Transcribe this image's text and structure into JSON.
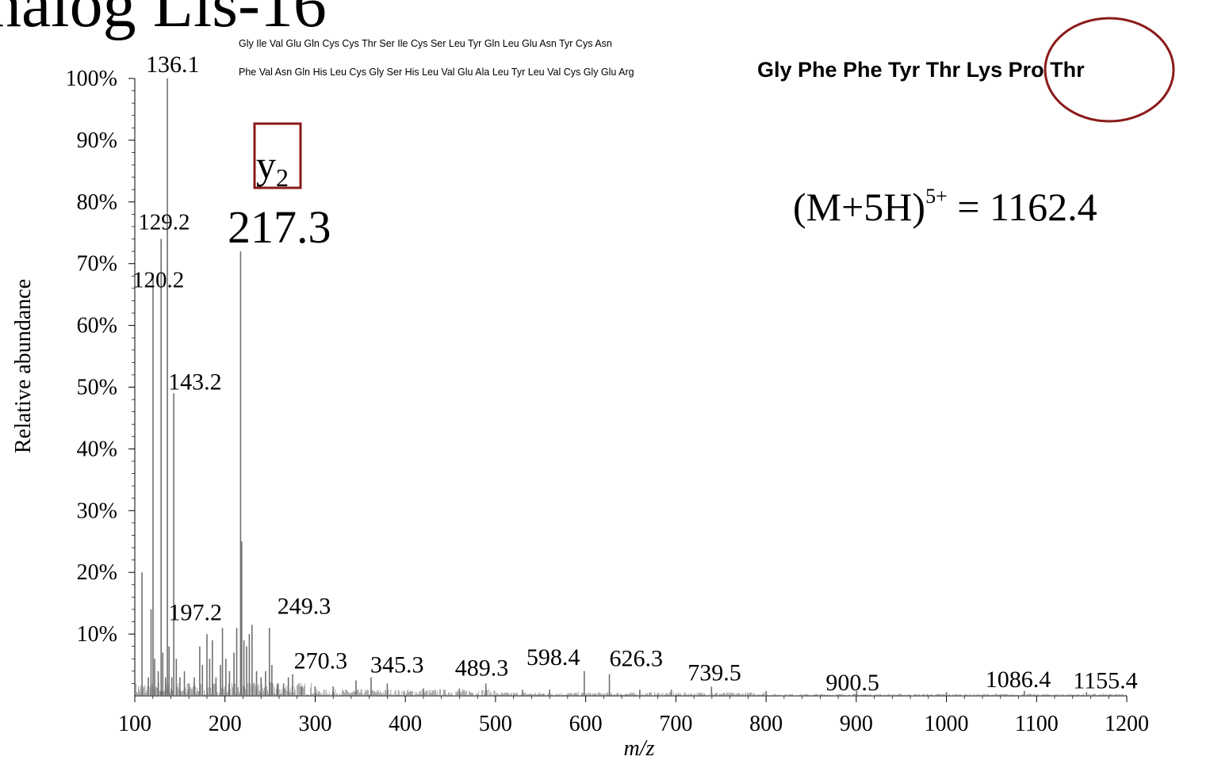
{
  "page": {
    "title_fragment": "nalog Lis-16"
  },
  "annotations": {
    "ion_label": "y",
    "ion_subscript": "2",
    "ion_value": "217.3",
    "precursor_prefix": "(M+5H)",
    "precursor_charge": "5+",
    "precursor_suffix": " = 1162.4",
    "sequence_line1": "Gly Ile Val Glu Gln Cys Cys Thr Ser Ile Cys Ser Leu Tyr Gln Leu Glu Asn Tyr Cys Asn",
    "sequence_line2_small": "Phe Val Asn Gln His Leu Cys Gly Ser His Leu Val Glu Ala Leu Tyr Leu Val Cys Gly Glu Arg",
    "sequence_line2_bold": "Gly Phe Phe Tyr Thr Lys Pro Thr",
    "box_color": "#8b1a1a",
    "circle_color": "#8b1a1a"
  },
  "chart_data": {
    "type": "bar",
    "xlabel": "m/z",
    "ylabel": "Relative abundance",
    "xlim": [
      100,
      1200
    ],
    "ylim": [
      0,
      100
    ],
    "xticks": [
      100,
      200,
      300,
      400,
      500,
      600,
      700,
      800,
      900,
      1000,
      1100,
      1200
    ],
    "yticks": [
      10,
      20,
      30,
      40,
      50,
      60,
      70,
      80,
      90,
      100
    ],
    "ytick_labels": [
      "10%",
      "20%",
      "30%",
      "40%",
      "50%",
      "60%",
      "70%",
      "80%",
      "90%",
      "100%"
    ],
    "line_color": "#707070",
    "peaks": [
      {
        "mz": 108.0,
        "intensity": 20.0
      },
      {
        "mz": 115.0,
        "intensity": 3.0
      },
      {
        "mz": 118.0,
        "intensity": 14.0
      },
      {
        "mz": 120.2,
        "intensity": 68.0,
        "label": "120.2"
      },
      {
        "mz": 122.0,
        "intensity": 6.0
      },
      {
        "mz": 126.0,
        "intensity": 4.0
      },
      {
        "mz": 129.2,
        "intensity": 74.0,
        "label": "129.2"
      },
      {
        "mz": 131.0,
        "intensity": 7.0
      },
      {
        "mz": 134.0,
        "intensity": 3.0
      },
      {
        "mz": 136.1,
        "intensity": 100.0,
        "label": "136.1"
      },
      {
        "mz": 138.0,
        "intensity": 8.0
      },
      {
        "mz": 141.0,
        "intensity": 3.0
      },
      {
        "mz": 143.2,
        "intensity": 49.0,
        "label": "143.2"
      },
      {
        "mz": 146.0,
        "intensity": 6.0
      },
      {
        "mz": 150.0,
        "intensity": 3.0
      },
      {
        "mz": 155.0,
        "intensity": 4.0
      },
      {
        "mz": 160.0,
        "intensity": 2.0
      },
      {
        "mz": 166.0,
        "intensity": 3.0
      },
      {
        "mz": 172.0,
        "intensity": 8.0
      },
      {
        "mz": 175.0,
        "intensity": 5.0
      },
      {
        "mz": 180.0,
        "intensity": 10.0
      },
      {
        "mz": 183.0,
        "intensity": 6.0
      },
      {
        "mz": 186.0,
        "intensity": 9.0
      },
      {
        "mz": 190.0,
        "intensity": 3.0
      },
      {
        "mz": 195.0,
        "intensity": 5.0
      },
      {
        "mz": 197.2,
        "intensity": 11.0,
        "label": "197.2"
      },
      {
        "mz": 201.0,
        "intensity": 6.0
      },
      {
        "mz": 205.0,
        "intensity": 4.0
      },
      {
        "mz": 210.0,
        "intensity": 7.0
      },
      {
        "mz": 213.0,
        "intensity": 11.0
      },
      {
        "mz": 217.3,
        "intensity": 72.0,
        "label": "217.3"
      },
      {
        "mz": 218.5,
        "intensity": 25.0
      },
      {
        "mz": 221.0,
        "intensity": 9.0
      },
      {
        "mz": 224.0,
        "intensity": 8.0
      },
      {
        "mz": 227.0,
        "intensity": 10.0
      },
      {
        "mz": 230.0,
        "intensity": 11.5
      },
      {
        "mz": 235.0,
        "intensity": 4.0
      },
      {
        "mz": 240.0,
        "intensity": 3.0
      },
      {
        "mz": 245.0,
        "intensity": 4.0
      },
      {
        "mz": 249.3,
        "intensity": 11.0,
        "label": "249.3"
      },
      {
        "mz": 252.0,
        "intensity": 5.0
      },
      {
        "mz": 258.0,
        "intensity": 2.0
      },
      {
        "mz": 265.0,
        "intensity": 2.0
      },
      {
        "mz": 270.3,
        "intensity": 3.0,
        "label": "270.3"
      },
      {
        "mz": 275.0,
        "intensity": 3.5
      },
      {
        "mz": 285.0,
        "intensity": 1.5
      },
      {
        "mz": 300.0,
        "intensity": 1.5
      },
      {
        "mz": 320.0,
        "intensity": 1.5
      },
      {
        "mz": 345.3,
        "intensity": 2.5,
        "label": "345.3"
      },
      {
        "mz": 362.0,
        "intensity": 3.0
      },
      {
        "mz": 380.0,
        "intensity": 2.0
      },
      {
        "mz": 420.0,
        "intensity": 1.2
      },
      {
        "mz": 460.0,
        "intensity": 1.2
      },
      {
        "mz": 489.3,
        "intensity": 2.0,
        "label": "489.3"
      },
      {
        "mz": 530.0,
        "intensity": 1.0
      },
      {
        "mz": 560.0,
        "intensity": 1.0
      },
      {
        "mz": 598.4,
        "intensity": 4.0,
        "label": "598.4"
      },
      {
        "mz": 626.3,
        "intensity": 3.5,
        "label": "626.3"
      },
      {
        "mz": 660.0,
        "intensity": 1.0
      },
      {
        "mz": 695.0,
        "intensity": 1.0
      },
      {
        "mz": 739.5,
        "intensity": 1.5,
        "label": "739.5"
      },
      {
        "mz": 800.0,
        "intensity": 0.8
      },
      {
        "mz": 900.5,
        "intensity": 0.8,
        "label": "900.5"
      },
      {
        "mz": 1000.0,
        "intensity": 0.6
      },
      {
        "mz": 1086.4,
        "intensity": 0.8,
        "label": "1086.4"
      },
      {
        "mz": 1155.4,
        "intensity": 0.6,
        "label": "1155.4"
      }
    ]
  }
}
